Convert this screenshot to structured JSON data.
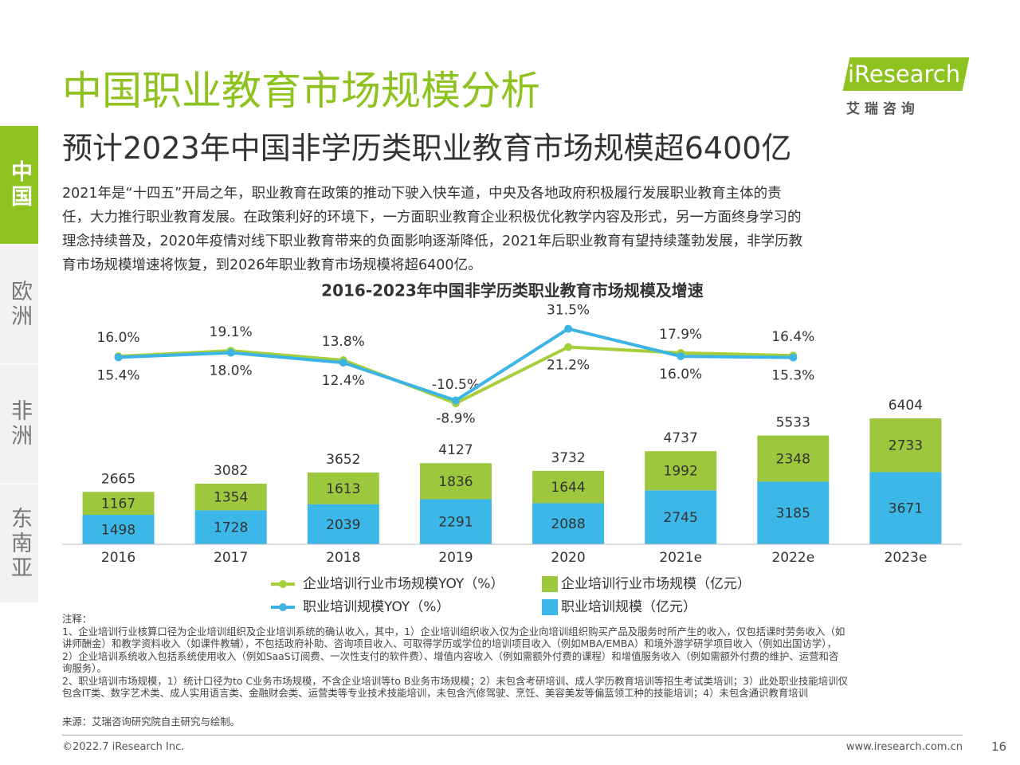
{
  "header": {
    "title": "中国职业教育市场规模分析",
    "subtitle": "预计2023年中国非学历类职业教育市场规模超6400亿",
    "logo": "iResearch",
    "logo_cn": "艾 瑞 咨 询"
  },
  "sidebar": [
    "中国",
    "欧洲",
    "非洲",
    "东南亚"
  ],
  "body": [
    "2021年是“十四五”开局之年，职业教育在政策的推动下驶入快车道，中央及各地政府积极履行发展职业教育主体的责",
    "任，大力推行职业教育发展。在政策利好的环境下，一方面职业教育企业积极优化教学内容及形式，另一方面终身学习的",
    "理念持续普及，2020年疫情对线下职业教育带来的负面影响逐渐降低，2021年后职业教育有望持续蓬勃发展，非学历教",
    "育市场规模增速将恢复，到2026年职业教育市场规模将超6400亿。"
  ],
  "chart_data": {
    "type": "bar",
    "title": "2016-2023年中国非学历类职业教育市场规模及增速",
    "categories": [
      "2016",
      "2017",
      "2018",
      "2019",
      "2020",
      "2021e",
      "2022e",
      "2023e"
    ],
    "ylim": [
      0,
      12000
    ],
    "y2lim": [
      -90,
      43
    ],
    "totals": [
      2665,
      3082,
      3652,
      4127,
      3732,
      4737,
      5533,
      6404
    ],
    "series": [
      {
        "name": "职业培训规模（亿元）",
        "type": "bar",
        "color": "#3cb8e8",
        "values": [
          1498,
          1728,
          2039,
          2291,
          2088,
          2745,
          3185,
          3671
        ]
      },
      {
        "name": "企业培训行业市场规模（亿元）",
        "type": "bar",
        "color": "#9dc73c",
        "values": [
          1167,
          1354,
          1613,
          1836,
          1644,
          1992,
          2348,
          2733
        ]
      },
      {
        "name": "企业培训行业市场规模YOY（%）",
        "type": "line",
        "axis": "y2",
        "color": "#a5cf3a",
        "values": [
          16.0,
          19.1,
          13.8,
          -10.5,
          21.2,
          17.9,
          16.4,
          null
        ],
        "value_labels": [
          "16.0%",
          "19.1%",
          "13.8%",
          "-10.5%",
          "21.2%",
          "17.9%",
          "16.4%",
          null
        ]
      },
      {
        "name": "职业培训规模YOY（%）",
        "type": "line",
        "axis": "y2",
        "color": "#3cb4e6",
        "values": [
          15.4,
          18.0,
          12.4,
          -8.9,
          31.5,
          16.0,
          15.3,
          null
        ],
        "value_labels": [
          "15.4%",
          "18.0%",
          "12.4%",
          "-8.9%",
          "31.5%",
          "16.0%",
          "15.3%",
          null
        ]
      }
    ]
  },
  "notes": [
    "注释：",
    "1、企业培训行业核算口径为企业培训组织及企业培训系统的确认收入，其中，1）企业培训组织收入仅为企业向培训组织购买产品及服务时所产生的收入，仅包括课时劳务收入（如",
    "讲师酬金）和教学资料收入（如课件教辅），不包括政府补助、咨询项目收入、可取得学历或学位的培训项目收入（例如MBA/EMBA）和境外游学研学项目收入（例如出国访学），",
    "2）企业培训系统收入包括系统使用收入（例如SaaS订阅费、一次性支付的软件费）、增值内容收入（例如需额外付费的课程）和增值服务收入（例如需额外付费的维护、运营和咨",
    "询服务）。",
    "2、职业培训市场规模，1）统计口径为to C业务市场规模，不含企业培训等to B业务市场规模；2）未包含考研培训、成人学历教育培训等招生考试类培训；3）此处职业技能培训仅",
    "包含IT类、数字艺术类、成人实用语言类、金融财会类、运营类等专业技术技能培训，未包含汽修驾驶、烹饪、美容美发等偏蓝领工种的技能培训；4）未包含通识教育培训"
  ],
  "source": "来源：艾瑞咨询研究院自主研究与绘制。",
  "footer": {
    "copyright": "©2022.7 iResearch Inc.",
    "url": "www.iresearch.com.cn",
    "page": "16"
  }
}
